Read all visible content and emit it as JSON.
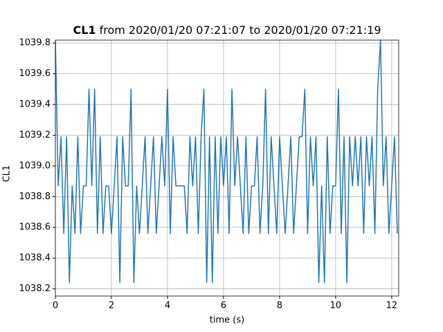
{
  "chart_data": {
    "type": "line",
    "title": {
      "bold": "CL1",
      "text": "from 2020/01/20 07:21:07 to 2020/01/20 07:21:19"
    },
    "xlabel": "time (s)",
    "ylabel": "CL1",
    "xlim": [
      0,
      12.25
    ],
    "xticks": [
      0,
      2,
      4,
      6,
      8,
      10,
      12
    ],
    "ylim": [
      1038.153,
      1039.819
    ],
    "yticks": [
      1038.2,
      1038.4,
      1038.6,
      1038.8,
      {
        "value": 1039,
        "label": "1039.0"
      },
      1039.2,
      1039.4,
      1039.6,
      1039.8
    ],
    "grid": true,
    "series": [
      {
        "color": "#1f77b4",
        "x": [
          0,
          0.1,
          0.2,
          0.3,
          0.4,
          0.5,
          0.6,
          0.7,
          0.8,
          0.9,
          1,
          1.1,
          1.2,
          1.3,
          1.4,
          1.5,
          1.6,
          1.7,
          1.8,
          1.9,
          2,
          2.1,
          2.2,
          2.3,
          2.4,
          2.5,
          2.6,
          2.7,
          2.8,
          2.9,
          3,
          3.1,
          3.2,
          3.3,
          3.4,
          3.5,
          3.6,
          3.7,
          3.8,
          3.9,
          4,
          4.1,
          4.2,
          4.3,
          4.4,
          4.5,
          4.6,
          4.7,
          4.8,
          4.9,
          5,
          5.1,
          5.2,
          5.3,
          5.4,
          5.5,
          5.6,
          5.7,
          5.8,
          5.9,
          6,
          6.1,
          6.2,
          6.3,
          6.4,
          6.5,
          6.6,
          6.7,
          6.8,
          6.9,
          7,
          7.1,
          7.2,
          7.3,
          7.4,
          7.5,
          7.6,
          7.7,
          7.8,
          7.9,
          8,
          8.1,
          8.2,
          8.3,
          8.4,
          8.5,
          8.6,
          8.7,
          8.8,
          8.9,
          9,
          9.1,
          9.2,
          9.3,
          9.4,
          9.5,
          9.6,
          9.7,
          9.8,
          9.9,
          10,
          10.1,
          10.2,
          10.3,
          10.4,
          10.5,
          10.6,
          10.7,
          10.8,
          10.9,
          11,
          11.1,
          11.2,
          11.3,
          11.4,
          11.5,
          11.6,
          11.7,
          11.8,
          11.9,
          12,
          12.1,
          12.2
        ],
        "values": [
          1039.82,
          1038.87,
          1039.19,
          1038.56,
          1039.19,
          1038.24,
          1038.87,
          1038.56,
          1039.19,
          1038.56,
          1038.87,
          1038.87,
          1039.5,
          1038.87,
          1039.5,
          1038.56,
          1039.19,
          1038.56,
          1038.87,
          1038.87,
          1038.56,
          1038.87,
          1039.19,
          1038.24,
          1039.19,
          1038.87,
          1038.87,
          1039.5,
          1038.24,
          1038.87,
          1038.56,
          1038.87,
          1039.19,
          1038.56,
          1038.87,
          1039.19,
          1038.56,
          1038.87,
          1039.19,
          1038.87,
          1039.5,
          1038.56,
          1039.19,
          1038.87,
          1038.87,
          1038.87,
          1038.87,
          1038.56,
          1039.19,
          1038.87,
          1039.19,
          1038.56,
          1039.19,
          1039.5,
          1038.24,
          1039.19,
          1038.24,
          1039.19,
          1038.56,
          1039.19,
          1038.87,
          1039.19,
          1038.56,
          1039.5,
          1038.87,
          1039.19,
          1038.87,
          1038.56,
          1039.19,
          1038.56,
          1038.87,
          1038.87,
          1039.19,
          1038.56,
          1038.87,
          1039.5,
          1038.56,
          1039.19,
          1038.87,
          1038.56,
          1039.19,
          1038.87,
          1038.56,
          1038.87,
          1039.19,
          1038.56,
          1038.87,
          1039.19,
          1039.19,
          1039.5,
          1038.56,
          1039.19,
          1038.87,
          1039.19,
          1038.24,
          1038.87,
          1038.24,
          1039.19,
          1038.56,
          1038.87,
          1038.87,
          1039.5,
          1038.56,
          1039.19,
          1038.24,
          1039.19,
          1038.87,
          1039.19,
          1038.87,
          1039.19,
          1038.56,
          1039.19,
          1038.87,
          1039.19,
          1038.56,
          1039.5,
          1039.82,
          1038.87,
          1039.19,
          1038.56,
          1038.87,
          1039.19,
          1038.56
        ]
      }
    ]
  }
}
